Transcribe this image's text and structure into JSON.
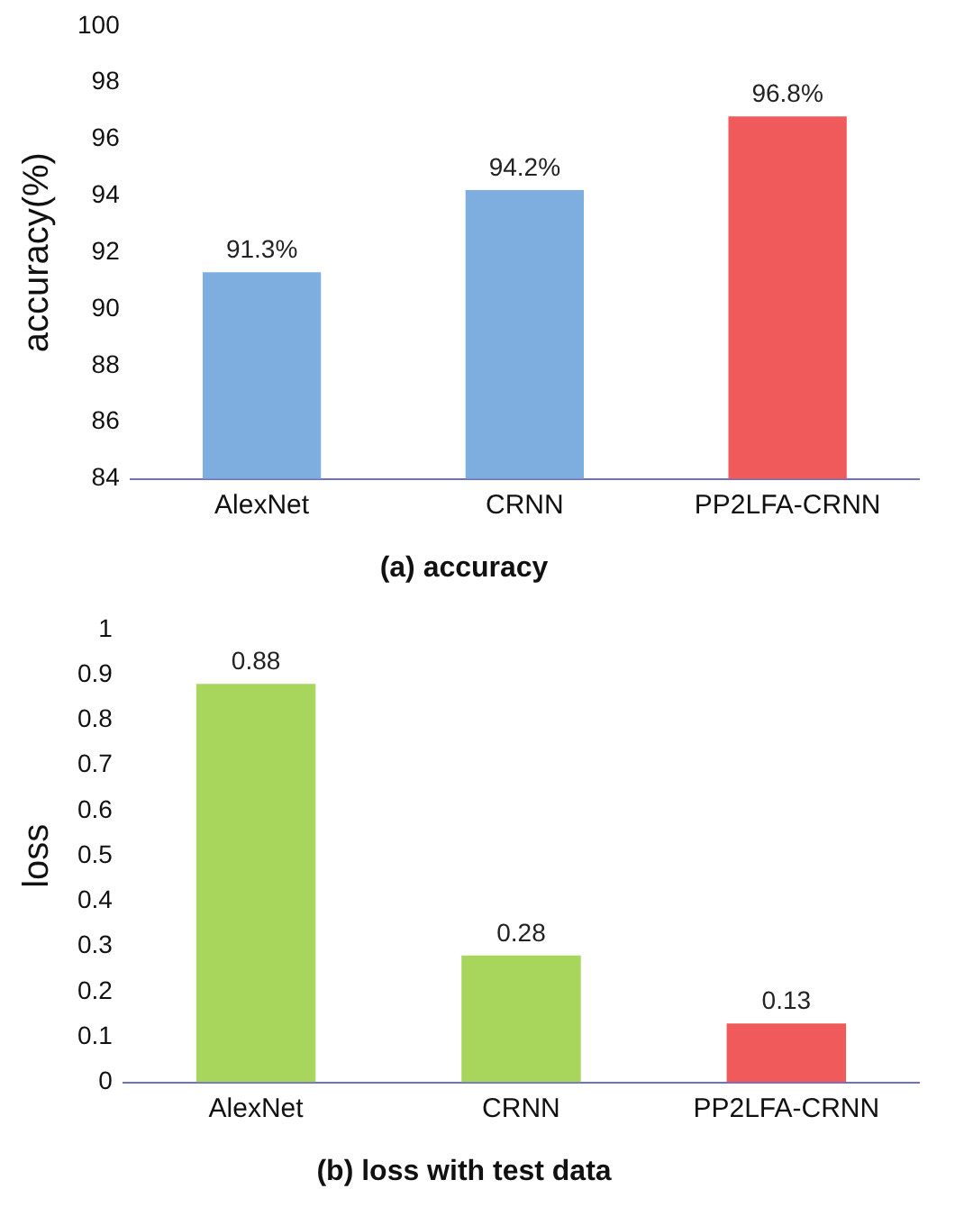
{
  "chart_data": [
    {
      "type": "bar",
      "title": "(a) accuracy",
      "ylabel": "accuracy(%)",
      "categories": [
        "AlexNet",
        "CRNN",
        "PP2LFA-CRNN"
      ],
      "values": [
        91.3,
        94.2,
        96.8
      ],
      "colors": [
        "#7eaee0",
        "#7eaee0",
        "#f05a5a"
      ],
      "value_labels": [
        "91.3%",
        "94.2%",
        "96.8%"
      ],
      "ylim": [
        84,
        100
      ],
      "yticks": [
        84,
        86,
        88,
        90,
        92,
        94,
        96,
        98,
        100
      ],
      "grid": false,
      "legend": false
    },
    {
      "type": "bar",
      "title": "(b) loss with test data",
      "ylabel": "loss",
      "categories": [
        "AlexNet",
        "CRNN",
        "PP2LFA-CRNN"
      ],
      "values": [
        0.88,
        0.28,
        0.13
      ],
      "colors": [
        "#a8d65c",
        "#a8d65c",
        "#f05a5a"
      ],
      "data_labels": true,
      "ylim": [
        0,
        1
      ],
      "yticks": [
        0,
        0.1,
        0.2,
        0.3,
        0.4,
        0.5,
        0.6,
        0.7,
        0.8,
        0.9,
        1
      ],
      "grid": false,
      "legend": false
    }
  ]
}
